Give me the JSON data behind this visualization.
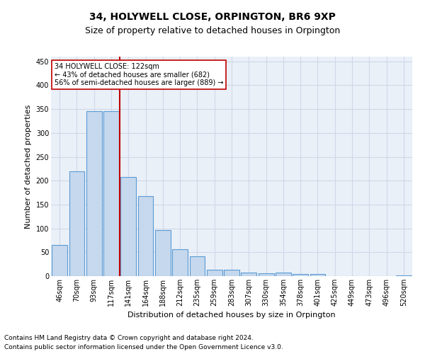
{
  "title": "34, HOLYWELL CLOSE, ORPINGTON, BR6 9XP",
  "subtitle": "Size of property relative to detached houses in Orpington",
  "xlabel": "Distribution of detached houses by size in Orpington",
  "ylabel": "Number of detached properties",
  "categories": [
    "46sqm",
    "70sqm",
    "93sqm",
    "117sqm",
    "141sqm",
    "164sqm",
    "188sqm",
    "212sqm",
    "235sqm",
    "259sqm",
    "283sqm",
    "307sqm",
    "330sqm",
    "354sqm",
    "378sqm",
    "401sqm",
    "425sqm",
    "449sqm",
    "473sqm",
    "496sqm",
    "520sqm"
  ],
  "values": [
    65,
    220,
    346,
    346,
    208,
    168,
    97,
    56,
    42,
    13,
    13,
    8,
    6,
    7,
    5,
    5,
    0,
    0,
    0,
    0,
    2
  ],
  "bar_color": "#c5d8ed",
  "bar_edge_color": "#5b9bd5",
  "bar_linewidth": 0.8,
  "vline_x": 3.5,
  "vline_color": "#c00000",
  "vline_linewidth": 1.5,
  "annotation_text": "34 HOLYWELL CLOSE: 122sqm\n← 43% of detached houses are smaller (682)\n56% of semi-detached houses are larger (889) →",
  "annotation_box_color": "#ffffff",
  "annotation_box_edge": "#c00000",
  "ylim": [
    0,
    460
  ],
  "yticks": [
    0,
    50,
    100,
    150,
    200,
    250,
    300,
    350,
    400,
    450
  ],
  "grid_color": "#d0d8e8",
  "bg_color": "#eaf0f8",
  "footer_line1": "Contains HM Land Registry data © Crown copyright and database right 2024.",
  "footer_line2": "Contains public sector information licensed under the Open Government Licence v3.0.",
  "title_fontsize": 10,
  "subtitle_fontsize": 9,
  "xlabel_fontsize": 8,
  "ylabel_fontsize": 8,
  "tick_fontsize": 7,
  "footer_fontsize": 6.5,
  "annot_fontsize": 7
}
